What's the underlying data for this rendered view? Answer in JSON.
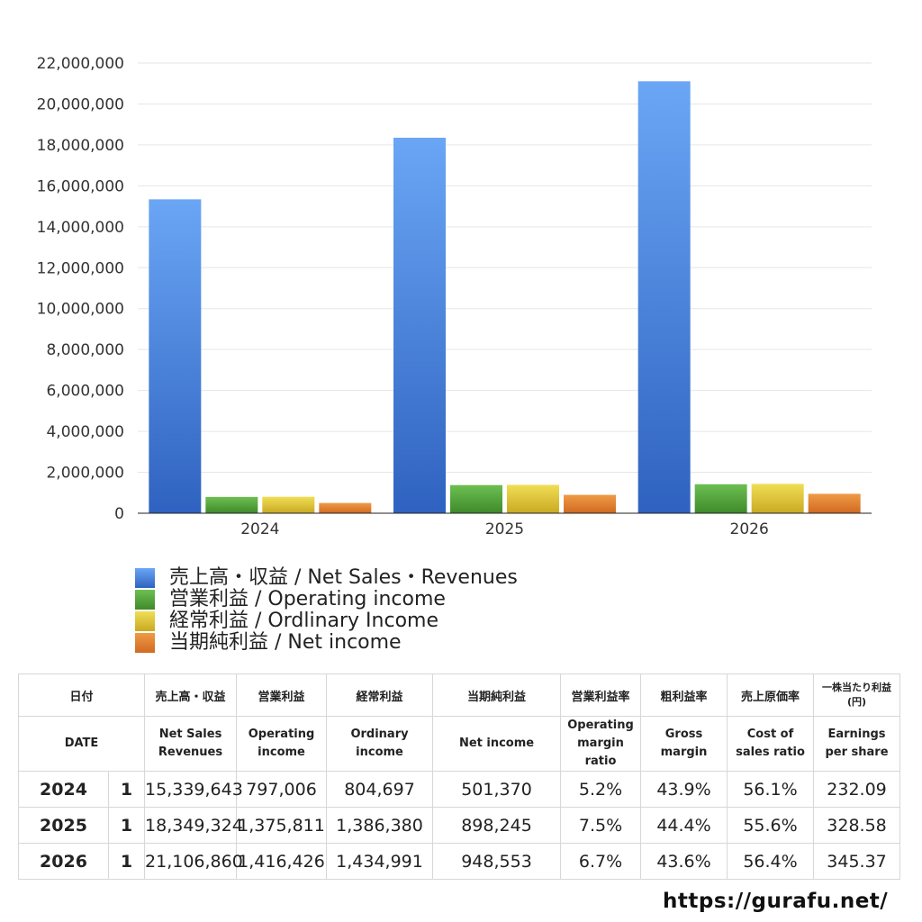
{
  "chart_data": {
    "type": "bar",
    "categories": [
      "2024",
      "2025",
      "2026"
    ],
    "series": [
      {
        "name": "売上高・収益 / Net Sales・Revenues",
        "values": [
          15339643,
          18349324,
          21106860
        ],
        "color": "#3f7fe0"
      },
      {
        "name": "営業利益 / Operating income",
        "values": [
          797006,
          1375811,
          1416426
        ],
        "color": "#4f9e36"
      },
      {
        "name": "経常利益 / Ordlinary Income",
        "values": [
          804697,
          1386380,
          1434991
        ],
        "color": "#d7c22e"
      },
      {
        "name": "当期純利益 / Net income",
        "values": [
          501370,
          898245,
          948553
        ],
        "color": "#e07b2e"
      }
    ],
    "ylim": [
      0,
      22000000
    ],
    "yticks": [
      "0",
      "2,000,000",
      "4,000,000",
      "6,000,000",
      "8,000,000",
      "10,000,000",
      "12,000,000",
      "14,000,000",
      "16,000,000",
      "18,000,000",
      "20,000,000",
      "22,000,000"
    ],
    "grid": true,
    "legend_position": "bottom-left"
  },
  "table": {
    "header_jp": [
      "日付",
      "売上高・収益",
      "営業利益",
      "経常利益",
      "当期純利益",
      "営業利益率",
      "粗利益率",
      "売上原価率",
      "一株当たり利益\n(円)"
    ],
    "header_en": [
      "DATE",
      "Net Sales\nRevenues",
      "Operating\nincome",
      "Ordinary\nincome",
      "Net income",
      "Operating\nmargin\nratio",
      "Gross\nmargin",
      "Cost of\nsales ratio",
      "Earnings\nper share"
    ],
    "rows": [
      {
        "year": "2024",
        "month": "1",
        "cells": [
          "15,339,643",
          "797,006",
          "804,697",
          "501,370",
          "5.2%",
          "43.9%",
          "56.1%",
          "232.09"
        ]
      },
      {
        "year": "2025",
        "month": "1",
        "cells": [
          "18,349,324",
          "1,375,811",
          "1,386,380",
          "898,245",
          "7.5%",
          "44.4%",
          "55.6%",
          "328.58"
        ]
      },
      {
        "year": "2026",
        "month": "1",
        "cells": [
          "21,106,860",
          "1,416,426",
          "1,434,991",
          "948,553",
          "6.7%",
          "43.6%",
          "56.4%",
          "345.37"
        ]
      }
    ]
  },
  "footer": {
    "url": "https://gurafu.net/"
  }
}
